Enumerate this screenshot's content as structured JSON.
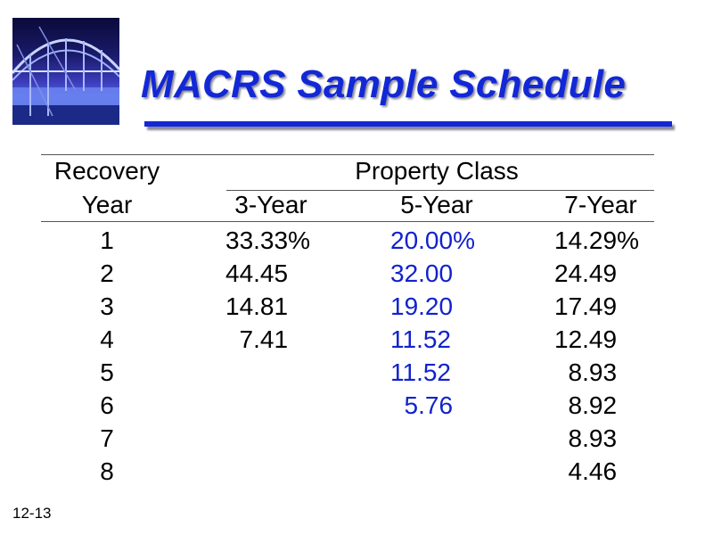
{
  "title": "MACRS Sample Schedule",
  "slide_number": "12-13",
  "logo_icon": "bridge-photo",
  "colors": {
    "title": "#1228d6",
    "five_year_column": "#1122cc"
  },
  "table": {
    "header": {
      "recovery_line1": "Recovery",
      "recovery_line2": "Year",
      "property_class": "Property Class",
      "columns": [
        "3-Year",
        "5-Year",
        "7-Year"
      ]
    },
    "rows": [
      {
        "year": "1",
        "three": "33.33%",
        "five": "20.00%",
        "seven": "14.29%"
      },
      {
        "year": "2",
        "three": "44.45",
        "five": "32.00",
        "seven": "24.49"
      },
      {
        "year": "3",
        "three": "14.81",
        "five": "19.20",
        "seven": "17.49"
      },
      {
        "year": "4",
        "three": "  7.41",
        "five": "11.52",
        "seven": "12.49"
      },
      {
        "year": "5",
        "three": "",
        "five": "11.52",
        "seven": "  8.93"
      },
      {
        "year": "6",
        "three": "",
        "five": "  5.76",
        "seven": "  8.92"
      },
      {
        "year": "7",
        "three": "",
        "five": "",
        "seven": "  8.93"
      },
      {
        "year": "8",
        "three": "",
        "five": "",
        "seven": "  4.46"
      }
    ]
  }
}
